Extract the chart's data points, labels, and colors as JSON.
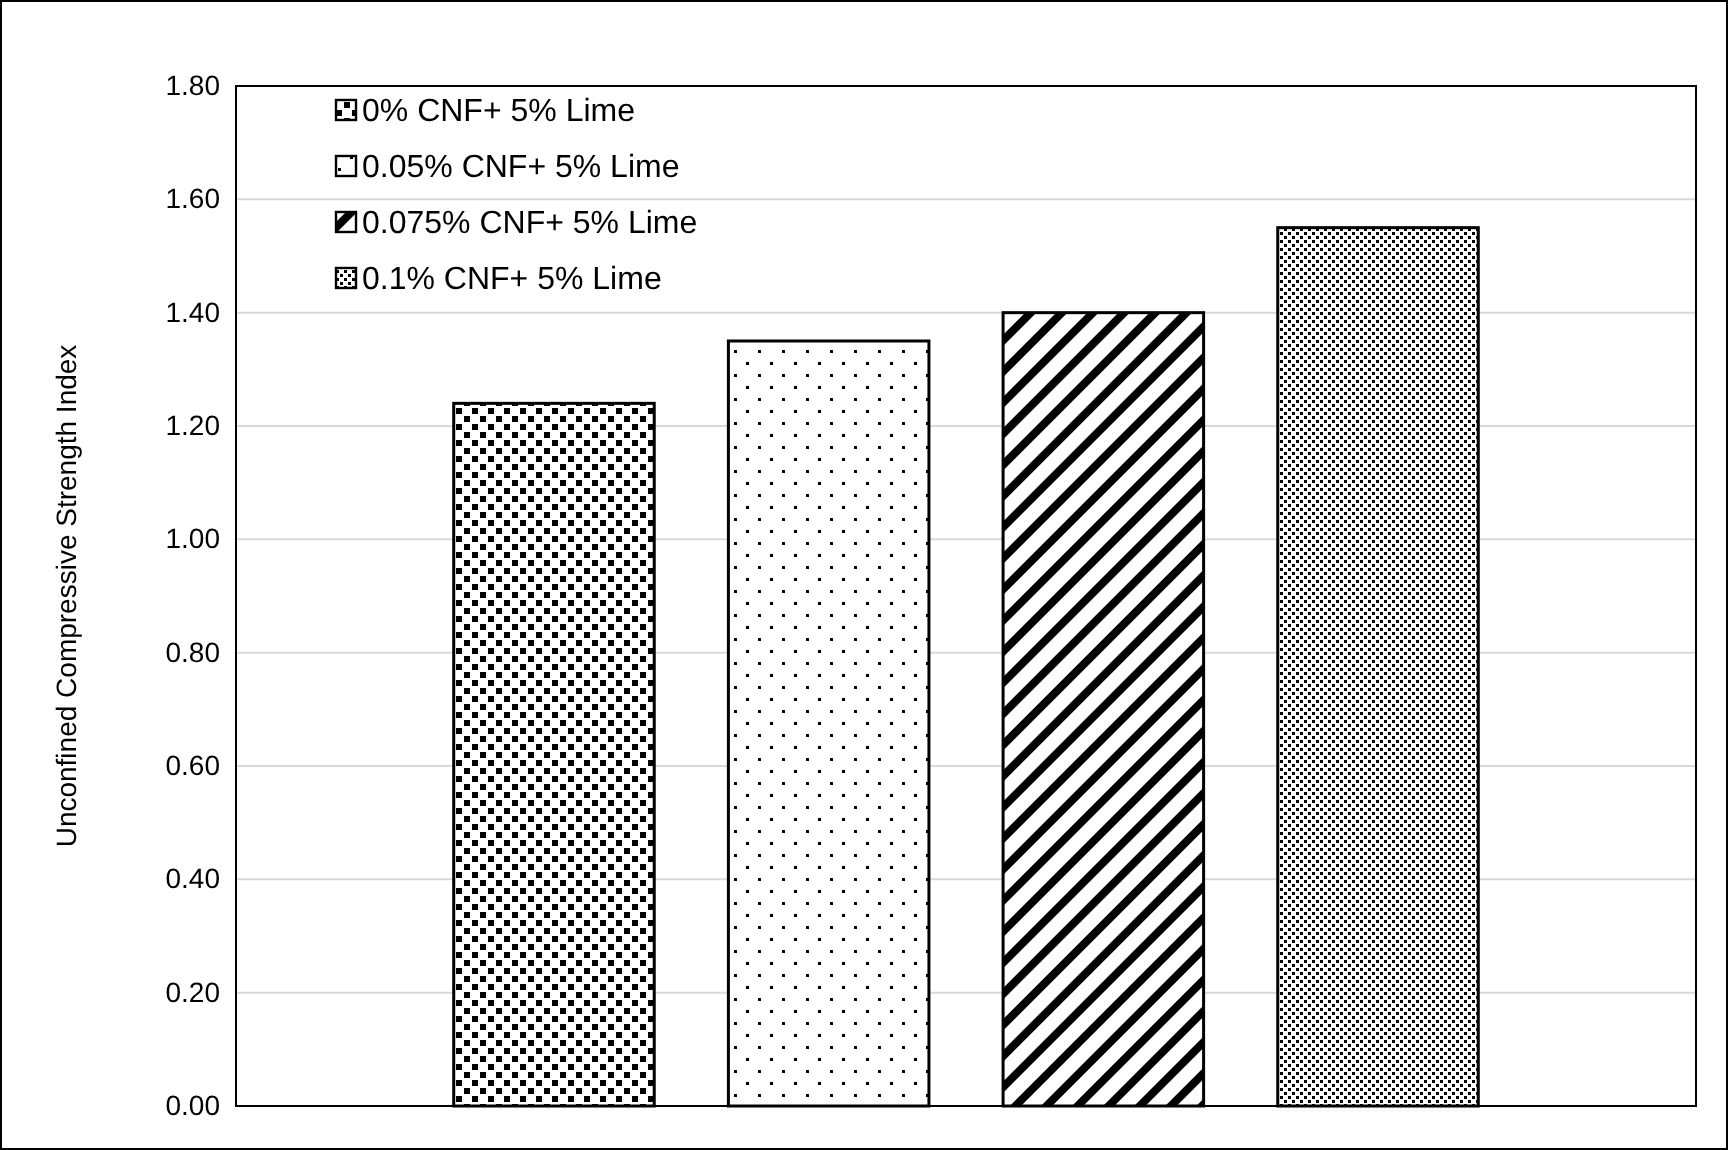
{
  "chart_data": {
    "type": "bar",
    "ylabel": "Unconfined Compressive Strength Index",
    "categories": [
      null
    ],
    "series": [
      {
        "name": "0% CNF+ 5% Lime",
        "color": "#000000",
        "values": [
          1.24
        ]
      },
      {
        "name": "0.05% CNF+ 5% Lime",
        "color": "#000000",
        "values": [
          1.35
        ]
      },
      {
        "name": "0.075% CNF+ 5% Lime",
        "color": "#000000",
        "values": [
          1.4
        ]
      },
      {
        "name": "0.1% CNF+ 5% Lime",
        "color": "#000000",
        "values": [
          1.55
        ]
      }
    ],
    "ylim": [
      0,
      1.8
    ],
    "yticks": [
      {
        "value": 0,
        "label": "0.00"
      },
      {
        "value": 0.2,
        "label": "0.20"
      },
      {
        "value": 0.4,
        "label": "0.40"
      },
      {
        "value": 0.6,
        "label": "0.60"
      },
      {
        "value": 0.8,
        "label": "0.80"
      },
      {
        "value": 1,
        "label": "1.00"
      },
      {
        "value": 1.2,
        "label": "1.20"
      },
      {
        "value": 1.4,
        "label": "1.40"
      },
      {
        "value": 1.6,
        "label": "1.60"
      },
      {
        "value": 1.8,
        "label": "1.80"
      }
    ],
    "grid": "y",
    "legend": "top left"
  }
}
